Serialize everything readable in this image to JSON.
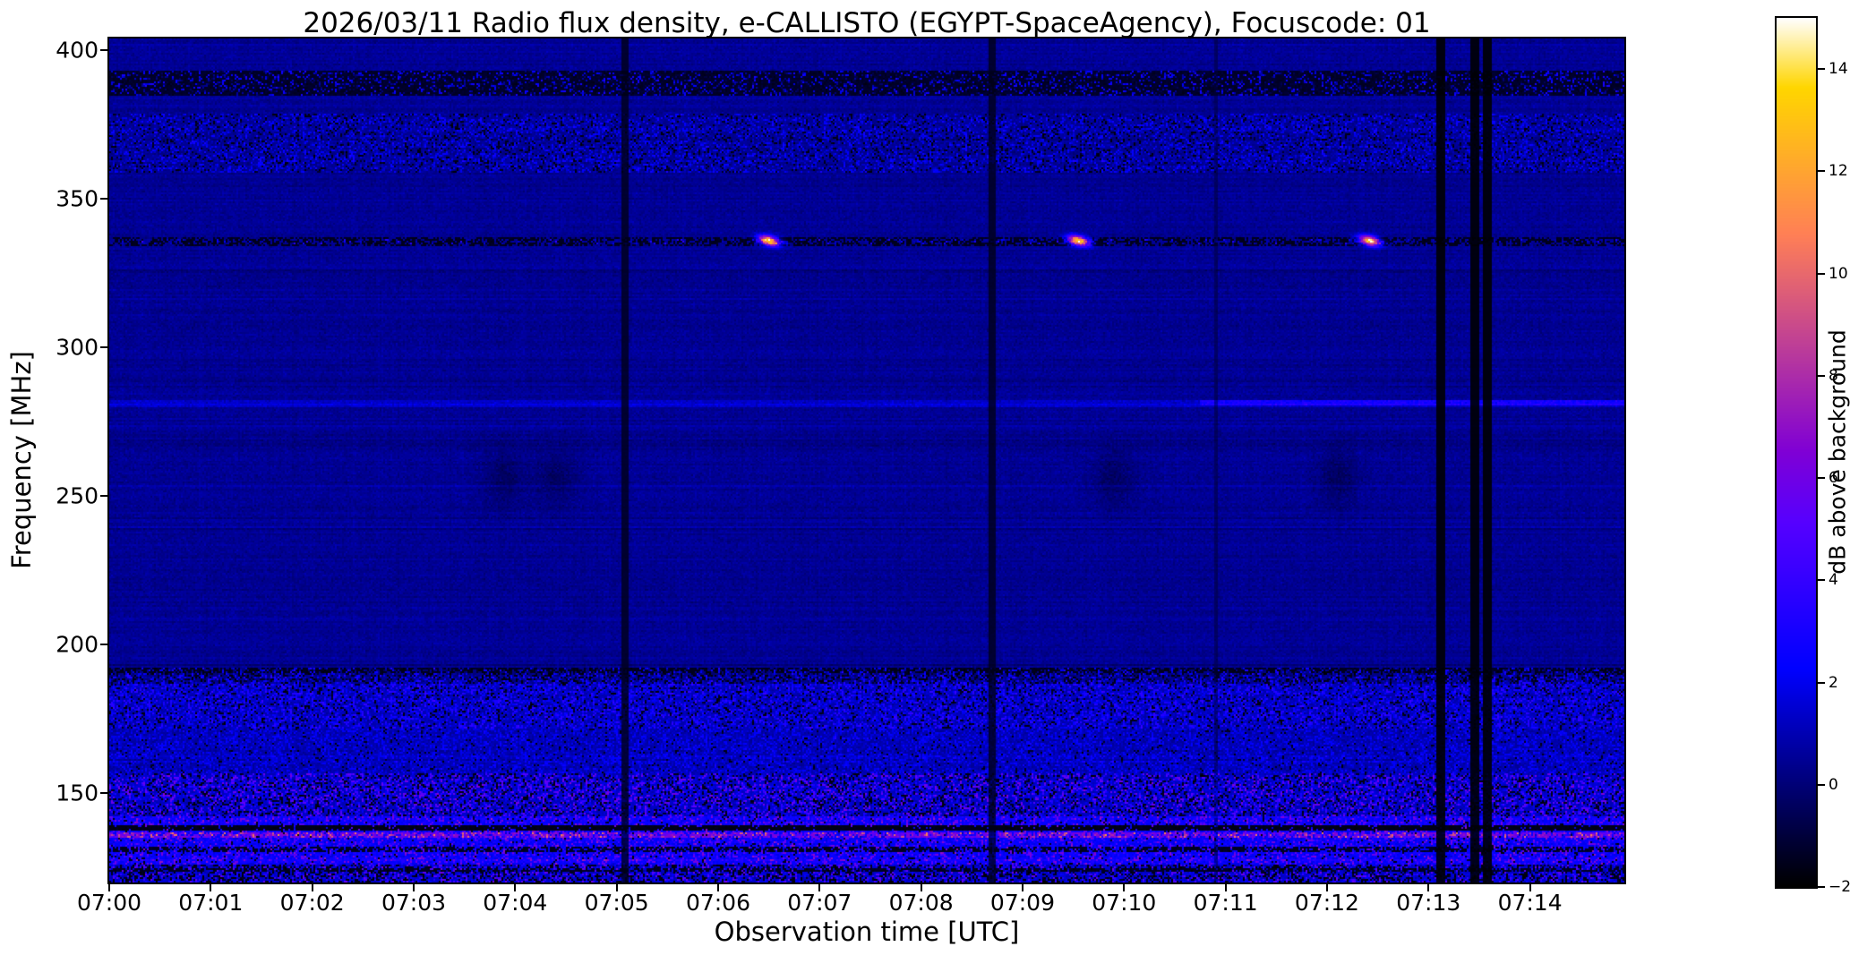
{
  "chart_data": {
    "type": "heatmap",
    "title": "2026/03/11  Radio flux density, e-CALLISTO (EGYPT-SpaceAgency), Focuscode: 01",
    "xlabel": "Observation time [UTC]",
    "ylabel": "Frequency [MHz]",
    "x_tick_labels": [
      "07:00",
      "07:01",
      "07:02",
      "07:03",
      "07:04",
      "07:05",
      "07:06",
      "07:07",
      "07:08",
      "07:09",
      "07:10",
      "07:11",
      "07:12",
      "07:13",
      "07:14"
    ],
    "x_tick_minutes": [
      0,
      1,
      2,
      3,
      4,
      5,
      6,
      7,
      8,
      9,
      10,
      11,
      12,
      13,
      14
    ],
    "x_range_minutes": [
      0,
      14.93
    ],
    "y_tick_labels": [
      "400",
      "350",
      "300",
      "250",
      "200",
      "150"
    ],
    "y_ticks_mhz": [
      400,
      350,
      300,
      250,
      200,
      150
    ],
    "y_range_mhz": [
      120,
      404
    ],
    "colorbar": {
      "label": "dB above background",
      "tick_labels": [
        "14",
        "12",
        "10",
        "8",
        "6",
        "4",
        "2",
        "0",
        "−2"
      ],
      "ticks": [
        14,
        12,
        10,
        8,
        6,
        4,
        2,
        0,
        -2
      ],
      "range": [
        -2,
        15
      ],
      "colormap": "gnuplot2"
    },
    "background_db": 0.45,
    "features": [
      {
        "kind": "band",
        "label": "dark RFI band ~389 MHz",
        "f": [
          385,
          393
        ],
        "set": -1.3,
        "sp_p": 0.28,
        "sp_amp": 4.5
      },
      {
        "kind": "band",
        "label": "speckled band 360-379 MHz",
        "f": [
          359,
          379
        ],
        "sp_p": 0.4,
        "sp_amp": 2.4,
        "dk_p": 0.12
      },
      {
        "kind": "hline",
        "label": "dark dashed line ~335 MHz",
        "f": [
          334.5,
          337
        ],
        "set": -1.5,
        "dash_p": 0.6
      },
      {
        "kind": "hline",
        "label": "bright dashes ~335 MHz",
        "f": [
          335,
          336.5
        ],
        "add": 2.5,
        "dash_p": 0.08
      },
      {
        "kind": "hline",
        "label": "faint line 281 MHz",
        "f": [
          280,
          282.5
        ],
        "add": 1.0
      },
      {
        "kind": "hline",
        "label": "brighter segment 281 MHz after 07:10.8",
        "f": [
          280.5,
          282.5
        ],
        "t": [
          10.75,
          14.93
        ],
        "add": 1.6
      },
      {
        "kind": "burst",
        "label": "narrowband bursts at 336 MHz",
        "f": 336,
        "times": [
          6.5,
          9.55,
          12.42
        ],
        "peak": 15,
        "sig_t": 0.07,
        "sig_f": 1.1,
        "drift": -6
      },
      {
        "kind": "burst",
        "label": "faint dark mottling mid-band",
        "f": 256,
        "times": [
          3.9,
          4.4,
          9.9,
          12.1
        ],
        "peak": -0.8,
        "sig_t": 0.14,
        "sig_f": 7,
        "drift": 0
      },
      {
        "kind": "band",
        "label": "RFI speckle 186-192 MHz",
        "f": [
          186.5,
          192
        ],
        "add": -0.2,
        "sp_p": 0.45,
        "sp_amp": 3.2,
        "dk_p": 0.25
      },
      {
        "kind": "band",
        "label": "RFI speckle 172-186 MHz",
        "f": [
          172,
          186.5
        ],
        "add": 0.6,
        "sp_p": 0.5,
        "sp_amp": 2.8,
        "dk_p": 0.12
      },
      {
        "kind": "band",
        "label": "speckle 157-172 MHz",
        "f": [
          157,
          172
        ],
        "add": 0.4,
        "sp_p": 0.5,
        "sp_amp": 1.8,
        "dk_p": 0.05
      },
      {
        "kind": "band",
        "label": "strong RFI 142-157 MHz",
        "f": [
          142,
          157
        ],
        "add": 0.8,
        "sp_p": 0.4,
        "sp_amp": 5.0,
        "dk_p": 0.18
      },
      {
        "kind": "band",
        "label": "bright band 126-142 MHz",
        "f": [
          126,
          142
        ],
        "add": 2.0,
        "sp_p": 0.3,
        "sp_amp": 4.5,
        "dk_p": 0.06
      },
      {
        "kind": "band",
        "label": "bottom speckle 120-126 MHz",
        "f": [
          120,
          126
        ],
        "add": 1.0,
        "sp_p": 0.35,
        "sp_amp": 4.5,
        "dk_p": 0.3
      },
      {
        "kind": "hline",
        "label": "magenta line ~135.8 MHz",
        "f": [
          135,
          136.8
        ],
        "add": 3.5,
        "dash_p": 0.75
      },
      {
        "kind": "hline",
        "label": "dark row ~138 MHz",
        "f": [
          137.5,
          139
        ],
        "set": -1.6,
        "dash_p": 0.9
      },
      {
        "kind": "hline",
        "label": "dark row ~131 MHz",
        "f": [
          130.5,
          132
        ],
        "set": -1.4,
        "dash_p": 0.6
      },
      {
        "kind": "hline",
        "label": "dark row ~124 MHz",
        "f": [
          123.5,
          125
        ],
        "set": -1.4,
        "dash_p": 0.55
      },
      {
        "kind": "hline",
        "label": "dark dashes ~191 MHz",
        "f": [
          190.5,
          192
        ],
        "set": -1.5,
        "dash_p": 0.5
      },
      {
        "kind": "vline",
        "label": "calibration gap 07:05.1",
        "t": [
          5.04,
          5.12
        ],
        "level": -1.6,
        "keep": 0.2
      },
      {
        "kind": "vline",
        "label": "calibration gap 07:08.7",
        "t": [
          8.66,
          8.74
        ],
        "level": -1.6,
        "keep": 0.2
      },
      {
        "kind": "vline",
        "label": "faint gap 07:10.9",
        "t": [
          10.88,
          10.93
        ],
        "level": -1.0,
        "keep": 0.45
      },
      {
        "kind": "vline",
        "label": "dark gap 07:13.1",
        "t": [
          13.07,
          13.16
        ],
        "level": -1.9,
        "keep": 0.08
      },
      {
        "kind": "vline",
        "label": "dark gap 07:13.5a",
        "t": [
          13.42,
          13.5
        ],
        "level": -1.9,
        "keep": 0.08
      },
      {
        "kind": "vline",
        "label": "dark gap 07:13.5b",
        "t": [
          13.54,
          13.62
        ],
        "level": -1.9,
        "keep": 0.08
      }
    ]
  }
}
